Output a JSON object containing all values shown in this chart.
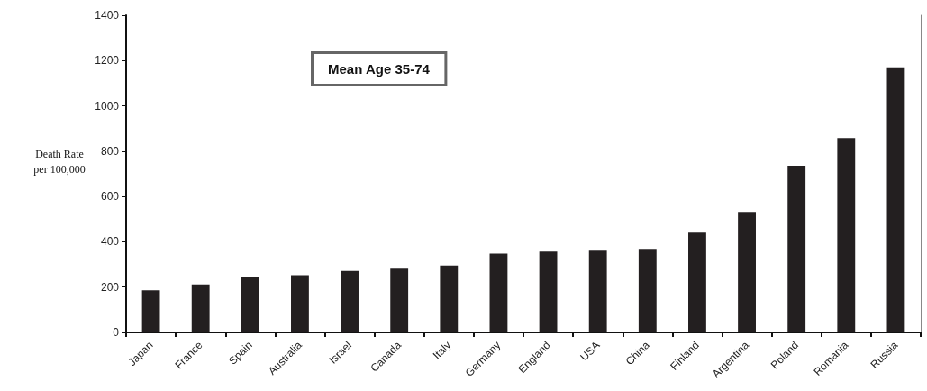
{
  "chart_data": {
    "type": "bar",
    "ylabel": "Death Rate\nper 100,000",
    "annotations": [
      "Mean Age 35-74"
    ],
    "categories": [
      "Japan",
      "France",
      "Spain",
      "Australia",
      "Israel",
      "Canada",
      "Italy",
      "Germany",
      "England",
      "USA",
      "China",
      "Finland",
      "Argentina",
      "Poland",
      "Romania",
      "Russia"
    ],
    "values": [
      186,
      212,
      245,
      253,
      271,
      281,
      295,
      348,
      357,
      361,
      369,
      440,
      532,
      736,
      858,
      1170
    ],
    "color": "#231f20",
    "ylim": [
      0,
      1400
    ],
    "yticks": [
      0,
      200,
      400,
      600,
      800,
      1000,
      1200,
      1400
    ],
    "grid": false
  }
}
